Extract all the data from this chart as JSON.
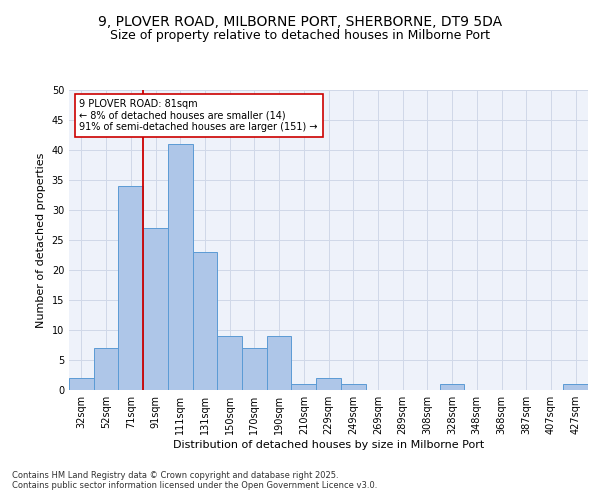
{
  "title1": "9, PLOVER ROAD, MILBORNE PORT, SHERBORNE, DT9 5DA",
  "title2": "Size of property relative to detached houses in Milborne Port",
  "xlabel": "Distribution of detached houses by size in Milborne Port",
  "ylabel": "Number of detached properties",
  "categories": [
    "32sqm",
    "52sqm",
    "71sqm",
    "91sqm",
    "111sqm",
    "131sqm",
    "150sqm",
    "170sqm",
    "190sqm",
    "210sqm",
    "229sqm",
    "249sqm",
    "269sqm",
    "289sqm",
    "308sqm",
    "328sqm",
    "348sqm",
    "368sqm",
    "387sqm",
    "407sqm",
    "427sqm"
  ],
  "values": [
    2,
    7,
    34,
    27,
    41,
    23,
    9,
    7,
    9,
    1,
    2,
    1,
    0,
    0,
    0,
    1,
    0,
    0,
    0,
    0,
    1
  ],
  "bar_color": "#aec6e8",
  "bar_edge_color": "#5b9bd5",
  "vline_color": "#cc0000",
  "annotation_text": "9 PLOVER ROAD: 81sqm\n← 8% of detached houses are smaller (14)\n91% of semi-detached houses are larger (151) →",
  "annotation_box_color": "#ffffff",
  "annotation_box_edge": "#cc0000",
  "grid_color": "#d0d8e8",
  "background_color": "#eef2fa",
  "ylim": [
    0,
    50
  ],
  "yticks": [
    0,
    5,
    10,
    15,
    20,
    25,
    30,
    35,
    40,
    45,
    50
  ],
  "footer": "Contains HM Land Registry data © Crown copyright and database right 2025.\nContains public sector information licensed under the Open Government Licence v3.0.",
  "title_fontsize": 10,
  "subtitle_fontsize": 9,
  "tick_fontsize": 7,
  "ylabel_fontsize": 8,
  "xlabel_fontsize": 8,
  "annotation_fontsize": 7,
  "footer_fontsize": 6
}
